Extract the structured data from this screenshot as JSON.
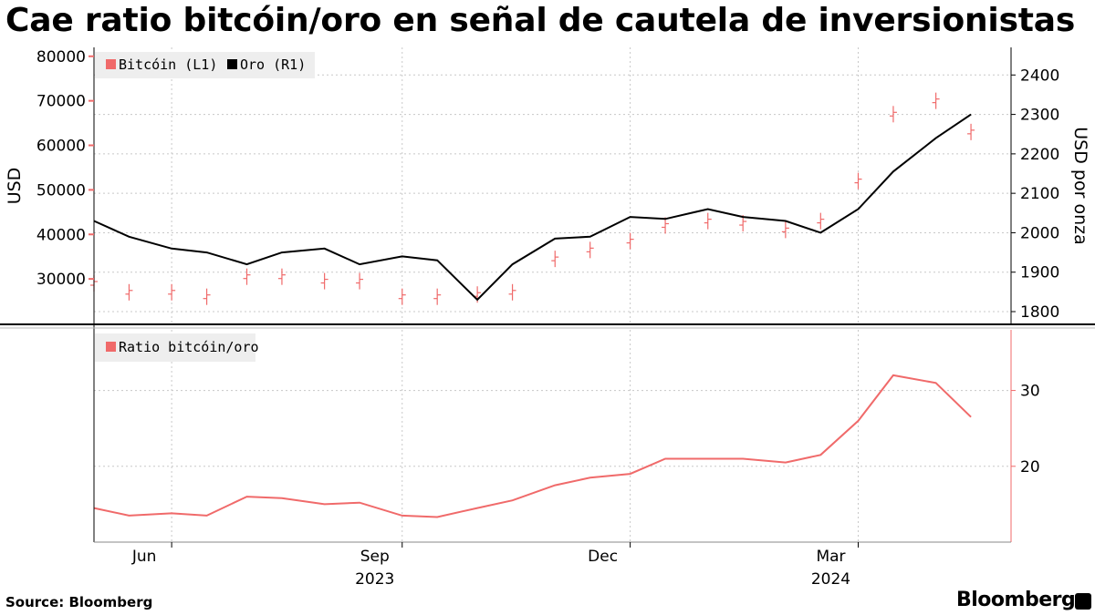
{
  "title": "Cae ratio bitcóin/oro en señal de cautela de inversionistas",
  "source": "Source: Bloomberg",
  "brand": "Bloomberg",
  "colors": {
    "bitcoin": "#f06a6a",
    "gold": "#000000",
    "ratio": "#f06a6a",
    "grid": "#c8c8c8"
  },
  "chart_data": [
    {
      "type": "line",
      "panel": "top",
      "legend": {
        "placement": "top-left",
        "entries": [
          "Bitcóin (L1)",
          "Oro (R1)"
        ]
      },
      "ylabel_left": "USD",
      "ylabel_right": "USD por onza",
      "ylim_left": [
        20000,
        82000
      ],
      "yticks_left": [
        "80000",
        "70000",
        "60000",
        "50000",
        "40000",
        "30000"
      ],
      "ylim_right": [
        1770,
        2470
      ],
      "yticks_right": [
        "2400",
        "2300",
        "2200",
        "2100",
        "2000",
        "1900",
        "1800"
      ],
      "x_dates": [
        "2023-05-01",
        "2023-05-15",
        "2023-06-01",
        "2023-06-15",
        "2023-07-01",
        "2023-07-15",
        "2023-08-01",
        "2023-08-15",
        "2023-09-01",
        "2023-09-15",
        "2023-10-01",
        "2023-10-15",
        "2023-11-01",
        "2023-11-15",
        "2023-12-01",
        "2023-12-15",
        "2024-01-01",
        "2024-01-15",
        "2024-02-01",
        "2024-02-15",
        "2024-03-01",
        "2024-03-15",
        "2024-04-01",
        "2024-04-15"
      ],
      "series": [
        {
          "name": "Bitcóin (L1)",
          "axis": "left",
          "style": "ohlc",
          "values": [
            29000,
            27000,
            27000,
            26000,
            30500,
            30500,
            29500,
            29500,
            26000,
            26000,
            26500,
            27000,
            34500,
            36500,
            38500,
            42000,
            43000,
            42500,
            41000,
            43000,
            52000,
            67000,
            70000,
            63000
          ]
        },
        {
          "name": "Oro (R1)",
          "axis": "right",
          "style": "line",
          "values": [
            2030,
            1990,
            1960,
            1950,
            1920,
            1950,
            1960,
            1920,
            1940,
            1930,
            1830,
            1920,
            1985,
            1990,
            2040,
            2035,
            2060,
            2040,
            2030,
            2000,
            2060,
            2155,
            2240,
            2300
          ]
        }
      ]
    },
    {
      "type": "line",
      "panel": "bottom",
      "legend": {
        "placement": "top-left",
        "entries": [
          "Ratio bitcóin/oro"
        ]
      },
      "ylim": [
        10,
        38
      ],
      "yticks_right": [
        "30",
        "20"
      ],
      "x_dates": [
        "2023-05-01",
        "2023-05-15",
        "2023-06-01",
        "2023-06-15",
        "2023-07-01",
        "2023-07-15",
        "2023-08-01",
        "2023-08-15",
        "2023-09-01",
        "2023-09-15",
        "2023-10-01",
        "2023-10-15",
        "2023-11-01",
        "2023-11-15",
        "2023-12-01",
        "2023-12-15",
        "2024-01-01",
        "2024-01-15",
        "2024-02-01",
        "2024-02-15",
        "2024-03-01",
        "2024-03-15",
        "2024-04-01",
        "2024-04-15"
      ],
      "series": [
        {
          "name": "Ratio bitcóin/oro",
          "values": [
            14.5,
            13.5,
            13.8,
            13.5,
            16.0,
            15.8,
            15.0,
            15.2,
            13.5,
            13.3,
            14.5,
            15.5,
            17.5,
            18.5,
            19.0,
            21.0,
            21.0,
            21.0,
            20.5,
            21.5,
            26.0,
            32.0,
            31.0,
            26.5
          ]
        }
      ]
    }
  ],
  "xaxis": {
    "months": [
      {
        "label": "Jun",
        "date": "2023-06-01"
      },
      {
        "label": "Sep",
        "date": "2023-09-01"
      },
      {
        "label": "Dec",
        "date": "2023-12-01"
      },
      {
        "label": "Mar",
        "date": "2024-03-01"
      }
    ],
    "years": [
      {
        "label": "2023",
        "date": "2023-09-01"
      },
      {
        "label": "2024",
        "date": "2024-03-01"
      }
    ]
  }
}
